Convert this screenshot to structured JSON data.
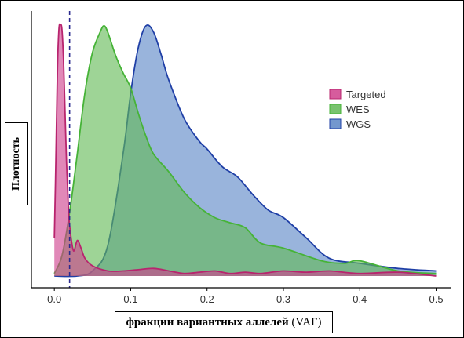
{
  "chart_data": {
    "type": "area",
    "xlabel_bold": "фракции вариантных аллелей",
    "xlabel_rest": " (VAF)",
    "ylabel": "Плотность",
    "xlim": [
      -0.03,
      0.52
    ],
    "ylim": [
      0,
      1.0
    ],
    "x_ticks": [
      0.0,
      0.1,
      0.2,
      0.3,
      0.4,
      0.5
    ],
    "x_tick_labels": [
      "0.0",
      "0.1",
      "0.2",
      "0.3",
      "0.4",
      "0.5"
    ],
    "grid": false,
    "legend_position": "right",
    "threshold_x": 0.02,
    "threshold_color": "#2b2a8f",
    "series": [
      {
        "name": "WGS",
        "fill": "#5b86c6",
        "stroke": "#1f3fa6",
        "x": [
          0.0,
          0.03,
          0.05,
          0.07,
          0.09,
          0.1,
          0.11,
          0.12,
          0.13,
          0.14,
          0.15,
          0.17,
          0.19,
          0.2,
          0.22,
          0.24,
          0.26,
          0.28,
          0.3,
          0.33,
          0.36,
          0.4,
          0.45,
          0.5
        ],
        "y": [
          0.0,
          0.0,
          0.02,
          0.12,
          0.48,
          0.72,
          0.9,
          0.985,
          0.96,
          0.87,
          0.77,
          0.62,
          0.53,
          0.5,
          0.43,
          0.39,
          0.32,
          0.26,
          0.23,
          0.15,
          0.07,
          0.05,
          0.03,
          0.02
        ]
      },
      {
        "name": "WES",
        "fill": "#62b956",
        "stroke": "#46b337",
        "x": [
          0.0,
          0.01,
          0.02,
          0.03,
          0.04,
          0.05,
          0.06,
          0.065,
          0.07,
          0.08,
          0.09,
          0.1,
          0.11,
          0.12,
          0.13,
          0.15,
          0.17,
          0.19,
          0.21,
          0.23,
          0.25,
          0.27,
          0.3,
          0.35,
          0.38,
          0.4,
          0.45,
          0.5
        ],
        "y": [
          0.01,
          0.08,
          0.25,
          0.48,
          0.72,
          0.88,
          0.96,
          0.985,
          0.96,
          0.87,
          0.8,
          0.74,
          0.64,
          0.55,
          0.48,
          0.41,
          0.33,
          0.27,
          0.23,
          0.21,
          0.19,
          0.13,
          0.11,
          0.06,
          0.05,
          0.06,
          0.02,
          0.01
        ]
      },
      {
        "name": "Targeted",
        "fill": "#cf3f8c",
        "stroke": "#b8246e",
        "x": [
          0.0,
          0.002,
          0.004,
          0.006,
          0.008,
          0.01,
          0.012,
          0.014,
          0.016,
          0.018,
          0.02,
          0.025,
          0.03,
          0.035,
          0.04,
          0.05,
          0.07,
          0.09,
          0.11,
          0.13,
          0.15,
          0.17,
          0.19,
          0.21,
          0.23,
          0.25,
          0.27,
          0.3,
          0.33,
          0.36,
          0.4,
          0.45,
          0.5
        ],
        "y": [
          0.15,
          0.45,
          0.8,
          0.97,
          0.99,
          0.97,
          0.85,
          0.65,
          0.45,
          0.3,
          0.2,
          0.1,
          0.14,
          0.11,
          0.07,
          0.04,
          0.02,
          0.02,
          0.025,
          0.03,
          0.02,
          0.01,
          0.015,
          0.02,
          0.01,
          0.015,
          0.01,
          0.02,
          0.015,
          0.02,
          0.01,
          0.015,
          0.0
        ]
      }
    ]
  }
}
